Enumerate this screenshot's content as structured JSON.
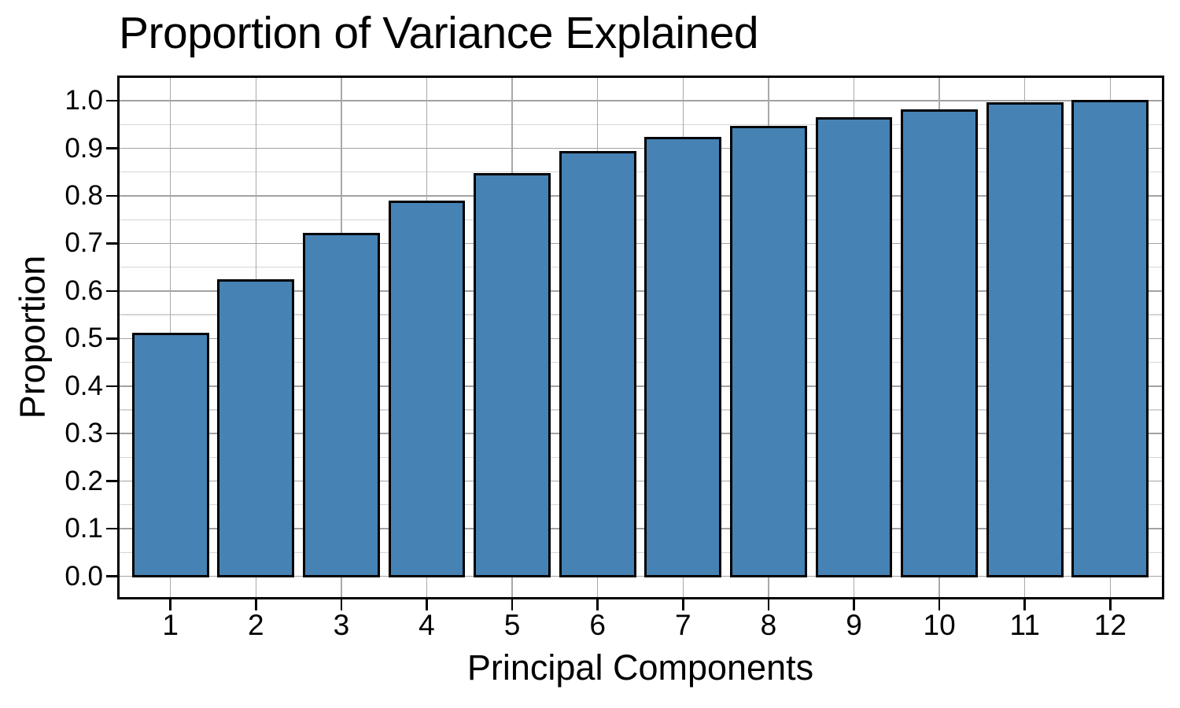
{
  "title": "Proportion of Variance Explained",
  "chart_data": {
    "type": "bar",
    "title": "Proportion of Variance Explained",
    "xlabel": "Principal Components",
    "ylabel": "Proportion",
    "categories": [
      "1",
      "2",
      "3",
      "4",
      "5",
      "6",
      "7",
      "8",
      "9",
      "10",
      "11",
      "12"
    ],
    "values": [
      0.51,
      0.622,
      0.72,
      0.788,
      0.846,
      0.891,
      0.922,
      0.945,
      0.963,
      0.979,
      0.994,
      1.0
    ],
    "xlim": [
      0.4,
      12.6
    ],
    "ylim": [
      -0.043,
      1.049
    ],
    "yticks": [
      0.0,
      0.1,
      0.2,
      0.3,
      0.4,
      0.5,
      0.6,
      0.7,
      0.8,
      0.9,
      1.0
    ],
    "ytick_labels": [
      "0.0",
      "0.1",
      "0.2",
      "0.3",
      "0.4",
      "0.5",
      "0.6",
      "0.7",
      "0.8",
      "0.9",
      "1.0"
    ],
    "minor_ytick_step": 0.05,
    "bar_width_data_units": 0.9,
    "bar_fill": "#4682B4",
    "bar_stroke": "#000000",
    "grid": "on",
    "legend": "none"
  }
}
